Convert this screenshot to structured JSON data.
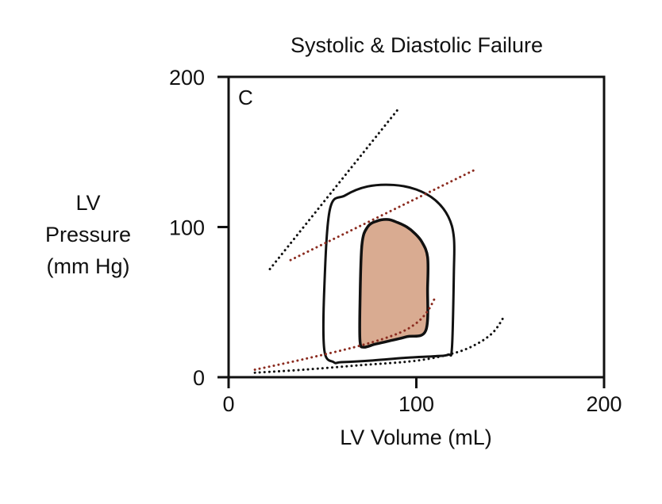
{
  "chart_data": {
    "type": "line",
    "title": "Systolic & Diastolic Failure",
    "panel_label": "C",
    "xlabel": "LV Volume (mL)",
    "ylabel_lines": [
      "LV",
      "Pressure",
      "(mm Hg)"
    ],
    "xlim": [
      0,
      200
    ],
    "ylim": [
      0,
      200
    ],
    "xticks": [
      0,
      100,
      200
    ],
    "yticks": [
      0,
      100,
      200
    ],
    "grid": false,
    "colors": {
      "normal_line": "#111111",
      "failure_line": "#8b2b1f",
      "failure_fill": "#d9ab91"
    },
    "series": [
      {
        "role": "normal-pv-loop",
        "style": "solid-black",
        "x": [
          56,
          51,
          51,
          54,
          62,
          74,
          88,
          100,
          110,
          117,
          120,
          120,
          119,
          117,
          110,
          95,
          75,
          60,
          56
        ],
        "y": [
          10,
          18,
          60,
          112,
          121,
          127,
          128,
          125,
          118,
          107,
          93,
          70,
          20,
          15,
          14,
          13,
          11,
          10,
          10
        ]
      },
      {
        "role": "failure-pv-loop",
        "style": "filled-brown",
        "x": [
          72,
          70,
          70,
          71,
          74,
          79,
          85,
          90,
          95,
          99,
          103,
          106,
          106,
          105,
          95,
          85,
          78,
          72
        ],
        "y": [
          20,
          24,
          50,
          88,
          100,
          104,
          105,
          103,
          100,
          96,
          90,
          80,
          60,
          31,
          27,
          24,
          22,
          20
        ]
      },
      {
        "role": "normal-esp-line",
        "style": "dotted-black",
        "x": [
          22,
          90
        ],
        "y": [
          72,
          178
        ]
      },
      {
        "role": "failure-esp-line",
        "style": "dotted-brown",
        "x": [
          33,
          131
        ],
        "y": [
          78,
          138
        ]
      },
      {
        "role": "normal-edpvr",
        "style": "dotted-black",
        "x": [
          14,
          40,
          70,
          100,
          120,
          132,
          141,
          147
        ],
        "y": [
          3,
          5,
          8,
          11,
          16,
          22,
          30,
          41
        ]
      },
      {
        "role": "failure-edpvr",
        "style": "dotted-brown",
        "x": [
          14,
          40,
          70,
          90,
          100,
          106,
          110
        ],
        "y": [
          5,
          12,
          21,
          29,
          36,
          44,
          53
        ]
      }
    ]
  }
}
